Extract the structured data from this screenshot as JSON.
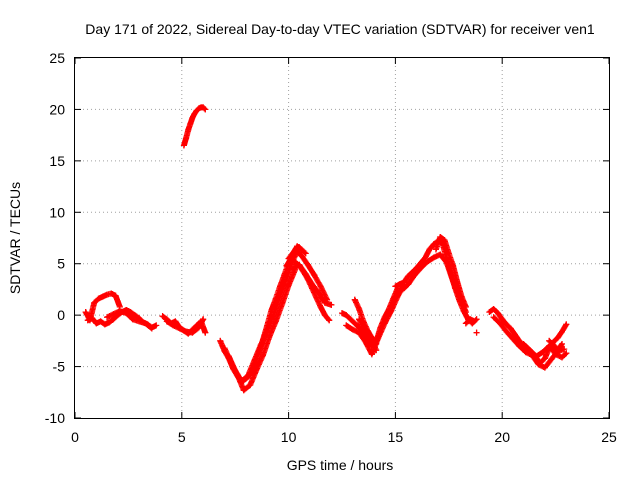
{
  "chart_data": {
    "type": "scatter",
    "title": "Day 171 of 2022, Sidereal Day-to-day VTEC variation (SDTVAR) for receiver ven1",
    "xlabel": "GPS time / hours",
    "ylabel": "SDTVAR / TECUs",
    "xlim": [
      0,
      25
    ],
    "ylim": [
      -10,
      25
    ],
    "xticks": [
      0,
      5,
      10,
      15,
      20,
      25
    ],
    "yticks": [
      -10,
      -5,
      0,
      5,
      10,
      15,
      20,
      25
    ],
    "xtick_labels": [
      "0",
      "5",
      "10",
      "15",
      "20",
      "25"
    ],
    "ytick_labels": [
      "-10",
      "-5",
      "0",
      "5",
      "10",
      "15",
      "20",
      "25"
    ],
    "grid": true,
    "legend": "none",
    "marker": "+",
    "colors": {
      "series": "#ff0000",
      "grid": "#a0a0a0",
      "axis": "#000000"
    },
    "series": [
      {
        "name": "ven1",
        "segments": [
          {
            "x": [
              0.5,
              0.7,
              0.9,
              1.1,
              1.3,
              1.5,
              1.7,
              1.9,
              2.1
            ],
            "y": [
              0.3,
              -0.5,
              1.2,
              1.6,
              1.8,
              2.0,
              2.1,
              1.9,
              0.8
            ]
          },
          {
            "x": [
              0.6,
              0.8,
              1.0,
              1.2,
              1.4,
              1.6,
              1.8,
              2.0,
              2.2,
              2.4,
              2.6,
              2.8,
              3.0,
              3.2,
              3.4,
              3.6,
              3.8
            ],
            "y": [
              -0.5,
              -0.3,
              -0.8,
              -0.6,
              -0.9,
              -0.7,
              -0.4,
              0.0,
              0.3,
              0.5,
              0.3,
              0.0,
              -0.3,
              -0.7,
              -0.9,
              -1.2,
              -1.0
            ]
          },
          {
            "x": [
              1.5,
              1.8,
              2.1,
              2.4,
              2.7,
              3.0,
              3.3,
              3.6
            ],
            "y": [
              -0.2,
              0.1,
              0.4,
              0.2,
              -0.4,
              -0.6,
              -0.8,
              -1.3
            ]
          },
          {
            "x": [
              4.1,
              4.3,
              4.5,
              4.7,
              4.9,
              5.1,
              5.3,
              5.5,
              5.7,
              5.9,
              6.1
            ],
            "y": [
              -0.1,
              -0.4,
              -0.8,
              -0.6,
              -1.2,
              -1.5,
              -1.8,
              -1.4,
              -1.0,
              -0.6,
              -1.7
            ]
          },
          {
            "x": [
              4.3,
              4.6,
              4.9,
              5.2,
              5.5,
              5.8,
              6.0
            ],
            "y": [
              -0.6,
              -1.0,
              -1.3,
              -1.6,
              -1.7,
              -1.2,
              -0.4
            ]
          },
          {
            "x": [
              5.1,
              5.2,
              5.3,
              5.4,
              5.5,
              5.6,
              5.7,
              5.8,
              5.9,
              6.0,
              6.1
            ],
            "y": [
              16.5,
              17.2,
              18.0,
              18.6,
              19.2,
              19.6,
              19.9,
              20.1,
              20.2,
              20.2,
              20.0
            ]
          },
          {
            "x": [
              6.8,
              7.0,
              7.2,
              7.4,
              7.6,
              7.8,
              8.0,
              8.2,
              8.4,
              8.6,
              8.8,
              9.0,
              9.2,
              9.4,
              9.6,
              9.8,
              10.0,
              10.2,
              10.4,
              10.6
            ],
            "y": [
              -2.5,
              -3.5,
              -4.2,
              -5.2,
              -5.9,
              -6.5,
              -6.2,
              -5.8,
              -5.0,
              -3.7,
              -2.4,
              -1.0,
              0.5,
              1.6,
              2.8,
              3.9,
              5.1,
              6.0,
              6.7,
              6.4
            ]
          },
          {
            "x": [
              7.0,
              7.3,
              7.6,
              7.9,
              8.2,
              8.5,
              8.8,
              9.1,
              9.4,
              9.7,
              10.0,
              10.3
            ],
            "y": [
              -3.2,
              -4.6,
              -5.8,
              -7.3,
              -6.8,
              -5.3,
              -3.9,
              -2.1,
              -0.6,
              1.1,
              2.9,
              4.4
            ]
          },
          {
            "x": [
              7.2,
              7.5,
              7.8,
              8.1,
              8.4,
              8.7,
              9.0,
              9.3,
              9.6,
              9.9,
              10.2,
              10.5,
              10.8
            ],
            "y": [
              -4.0,
              -5.4,
              -6.4,
              -5.9,
              -4.4,
              -2.9,
              -1.5,
              0.0,
              1.8,
              3.5,
              5.3,
              6.6,
              6.0
            ]
          },
          {
            "x": [
              9.9,
              10.1,
              10.3,
              10.5,
              10.7,
              10.9,
              11.1,
              11.3,
              11.5,
              11.7,
              11.9
            ],
            "y": [
              4.8,
              5.4,
              5.2,
              4.8,
              4.2,
              3.5,
              2.6,
              1.7,
              0.8,
              0.0,
              -0.5
            ]
          },
          {
            "x": [
              10.0,
              10.3,
              10.6,
              10.9,
              11.2,
              11.5,
              11.8
            ],
            "y": [
              5.5,
              6.3,
              5.8,
              4.9,
              3.9,
              2.8,
              1.5
            ]
          },
          {
            "x": [
              10.2,
              10.5,
              10.8,
              11.1,
              11.4,
              11.7,
              12.0
            ],
            "y": [
              4.5,
              4.9,
              4.0,
              3.0,
              2.2,
              1.2,
              1.0
            ]
          },
          {
            "x": [
              12.5,
              12.7,
              12.9,
              13.1,
              13.3,
              13.5,
              13.7,
              13.9,
              14.1,
              14.3,
              14.5,
              14.7,
              14.9,
              15.1
            ],
            "y": [
              0.2,
              0.0,
              -0.4,
              -0.8,
              -1.2,
              -1.8,
              -2.5,
              -3.0,
              -2.6,
              -1.2,
              -0.2,
              0.6,
              1.6,
              2.6
            ]
          },
          {
            "x": [
              12.7,
              13.0,
              13.3,
              13.6,
              13.9,
              14.2,
              14.5,
              14.8,
              15.1,
              15.4
            ],
            "y": [
              -1.0,
              -1.4,
              -1.7,
              -2.6,
              -3.8,
              -2.2,
              -0.8,
              0.4,
              1.8,
              3.0
            ]
          },
          {
            "x": [
              13.1,
              13.3,
              13.5,
              13.7,
              13.9,
              14.1
            ],
            "y": [
              1.5,
              0.6,
              -0.6,
              -1.5,
              -2.2,
              -2.8
            ]
          },
          {
            "x": [
              13.3,
              13.5,
              13.7,
              13.9,
              14.1
            ],
            "y": [
              -0.4,
              -1.3,
              -2.0,
              -2.5,
              -3.4
            ]
          },
          {
            "x": [
              15.0,
              15.2,
              15.4,
              15.6,
              15.8,
              16.0,
              16.2,
              16.4,
              16.6,
              16.8,
              17.0,
              17.2,
              17.4,
              17.6,
              17.8,
              18.0,
              18.2,
              18.4,
              18.6,
              18.8
            ],
            "y": [
              2.8,
              3.0,
              3.2,
              3.8,
              4.2,
              4.6,
              5.1,
              5.6,
              6.4,
              6.9,
              7.2,
              7.0,
              5.5,
              4.0,
              2.6,
              1.4,
              0.4,
              -0.4,
              -0.8,
              -0.4
            ]
          },
          {
            "x": [
              15.3,
              15.6,
              15.9,
              16.2,
              16.5,
              16.8,
              17.1,
              17.4,
              17.7,
              18.0,
              18.3
            ],
            "y": [
              2.4,
              3.0,
              3.9,
              4.6,
              5.2,
              5.6,
              5.9,
              5.1,
              3.3,
              1.8,
              0.3
            ]
          },
          {
            "x": [
              16.9,
              17.1,
              17.3,
              17.5,
              17.7,
              17.9,
              18.1,
              18.3
            ],
            "y": [
              6.4,
              7.6,
              7.3,
              6.0,
              4.8,
              3.2,
              1.8,
              0.8
            ]
          },
          {
            "x": [
              18.3,
              18.5,
              18.7
            ],
            "y": [
              -0.8,
              -0.4,
              -0.6
            ]
          },
          {
            "x": [
              19.4,
              19.6,
              19.8,
              20.0,
              20.2,
              20.4,
              20.6,
              20.8,
              21.0,
              21.2,
              21.4,
              21.6,
              21.8,
              22.0,
              22.2,
              22.4,
              22.6,
              22.8,
              23.0
            ],
            "y": [
              0.3,
              0.6,
              0.2,
              -0.4,
              -0.9,
              -1.3,
              -1.9,
              -2.5,
              -3.0,
              -3.5,
              -3.8,
              -4.2,
              -4.6,
              -4.2,
              -3.2,
              -2.6,
              -2.2,
              -1.6,
              -0.9
            ]
          },
          {
            "x": [
              19.6,
              19.9,
              20.2,
              20.5,
              20.8,
              21.1,
              21.4,
              21.7,
              22.0,
              22.3,
              22.6,
              22.9
            ],
            "y": [
              -0.2,
              -0.8,
              -1.6,
              -2.3,
              -3.0,
              -3.6,
              -3.9,
              -4.8,
              -5.1,
              -4.3,
              -3.5,
              -3.3
            ]
          },
          {
            "x": [
              21.0,
              21.3,
              21.6,
              21.9,
              22.2,
              22.5,
              22.8,
              23.0
            ],
            "y": [
              -2.8,
              -3.4,
              -4.0,
              -3.6,
              -3.0,
              -3.8,
              -4.1,
              -3.7
            ]
          },
          {
            "x": [
              22.2,
              22.4,
              22.6,
              22.8
            ],
            "y": [
              -2.5,
              -2.9,
              -3.4,
              -2.8
            ]
          },
          {
            "x": [
              18.8
            ],
            "y": [
              -1.7
            ]
          }
        ]
      }
    ]
  }
}
